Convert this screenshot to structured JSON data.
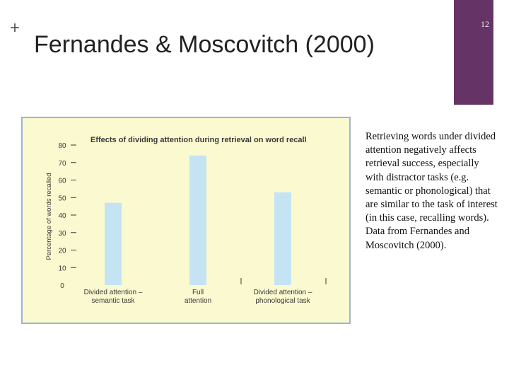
{
  "slide": {
    "plus_symbol": "+",
    "title": "Fernandes & Moscovitch (2000)",
    "slide_number": "12",
    "caption": "Retrieving words under divided attention negatively affects retrieval success, especially with distractor tasks (e.g. semantic or phonological) that are similar to the task of interest (in this case, recalling words). Data from Fernandes and Moscovitch (2000).",
    "colors": {
      "accent": "#663366",
      "figure_background": "#fbf9cf",
      "figure_border": "#9db4d3",
      "bar_fill": "#c4e4f4",
      "chart_text": "#3a3a3a"
    }
  },
  "chart_data": {
    "type": "bar",
    "title": "Effects of dividing attention during retrieval on word recall",
    "ylabel": "Percentage of words recalled",
    "xlabel": "",
    "ylim": [
      0,
      80
    ],
    "yticks": [
      0,
      10,
      20,
      30,
      40,
      50,
      60,
      70,
      80
    ],
    "categories": [
      [
        "Divided attention –",
        "semantic task"
      ],
      [
        "Full",
        "attention"
      ],
      [
        "Divided attention –",
        "phonological task"
      ]
    ],
    "values": [
      47,
      74,
      53
    ],
    "grid": false
  }
}
